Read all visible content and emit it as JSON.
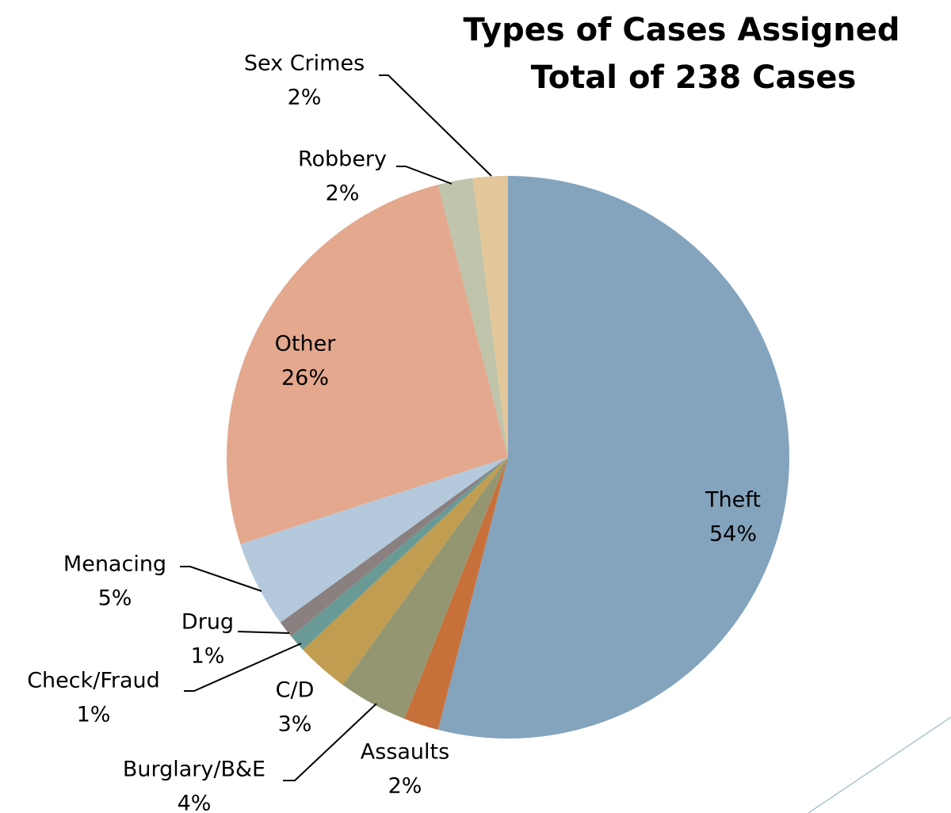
{
  "chart_data": {
    "type": "pie",
    "title": "Types of Cases Assigned",
    "subtitle": "Total of 238 Cases",
    "categories": [
      "Theft",
      "Assaults",
      "Burglary/B&E",
      "C/D",
      "Check/Fraud",
      "Drug",
      "Menacing",
      "Other",
      "Robbery",
      "Sex Crimes"
    ],
    "values": [
      54,
      2,
      4,
      3,
      1,
      1,
      5,
      26,
      2,
      2
    ],
    "value_labels": [
      "54%",
      "2%",
      "4%",
      "3%",
      "1%",
      "1%",
      "5%",
      "26%",
      "2%",
      "2%"
    ],
    "colors": [
      "#84a3bd",
      "#c8703a",
      "#939671",
      "#c09d50",
      "#6a9a96",
      "#8a8080",
      "#b4c9dc",
      "#e3a88e",
      "#bfc4aa",
      "#e3c699"
    ]
  }
}
